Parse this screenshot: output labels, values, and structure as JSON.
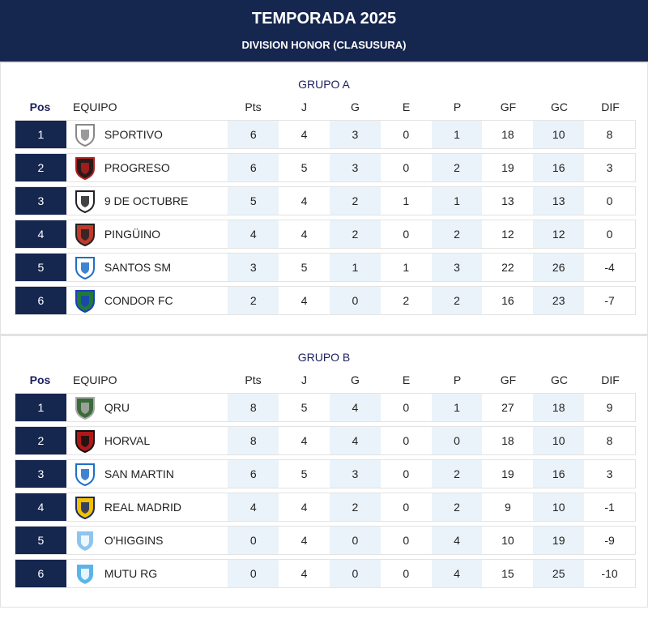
{
  "header": {
    "title": "TEMPORADA 2025",
    "subtitle": "DIVISION HONOR (CLASUSURA)"
  },
  "columns": [
    "Pos",
    "EQUIPO",
    "Pts",
    "J",
    "G",
    "E",
    "P",
    "GF",
    "GC",
    "DIF"
  ],
  "groups": [
    {
      "title": "GRUPO A",
      "rows": [
        {
          "pos": "1",
          "team": "SPORTIVO",
          "logo": "sportivo-crest",
          "stats": [
            "6",
            "4",
            "3",
            "0",
            "1",
            "18",
            "10",
            "8"
          ],
          "colors": [
            "#ffffff",
            "#888888"
          ]
        },
        {
          "pos": "2",
          "team": "PROGRESO",
          "logo": "progreso-crest",
          "stats": [
            "6",
            "5",
            "3",
            "0",
            "2",
            "19",
            "16",
            "3"
          ],
          "colors": [
            "#2a1a1a",
            "#b02020"
          ]
        },
        {
          "pos": "3",
          "team": "9 DE OCTUBRE",
          "logo": "9-de-octubre-crest",
          "stats": [
            "5",
            "4",
            "2",
            "1",
            "1",
            "13",
            "13",
            "0"
          ],
          "colors": [
            "#ffffff",
            "#222222"
          ]
        },
        {
          "pos": "4",
          "team": "PINGÜINO",
          "logo": "pinguino-crest",
          "stats": [
            "4",
            "4",
            "2",
            "0",
            "2",
            "12",
            "12",
            "0"
          ],
          "colors": [
            "#c0392b",
            "#222222"
          ]
        },
        {
          "pos": "5",
          "team": "SANTOS SM",
          "logo": "santos-sm-crest",
          "stats": [
            "3",
            "5",
            "1",
            "1",
            "3",
            "22",
            "26",
            "-4"
          ],
          "colors": [
            "#ffffff",
            "#1e6fc8"
          ]
        },
        {
          "pos": "6",
          "team": "CONDOR FC",
          "logo": "condor-fc-crest",
          "stats": [
            "2",
            "4",
            "0",
            "2",
            "2",
            "16",
            "23",
            "-7"
          ],
          "colors": [
            "#1f7a3a",
            "#1a3fbf"
          ]
        }
      ]
    },
    {
      "title": "GRUPO B",
      "rows": [
        {
          "pos": "1",
          "team": "QRU",
          "logo": "qru-crest",
          "stats": [
            "8",
            "5",
            "4",
            "0",
            "1",
            "27",
            "18",
            "9"
          ],
          "colors": [
            "#3b6b3b",
            "#aaaaaa"
          ]
        },
        {
          "pos": "2",
          "team": "HORVAL",
          "logo": "horval-crest",
          "stats": [
            "8",
            "4",
            "4",
            "0",
            "0",
            "18",
            "10",
            "8"
          ],
          "colors": [
            "#b01818",
            "#111111"
          ]
        },
        {
          "pos": "3",
          "team": "SAN MARTIN",
          "logo": "san-martin-crest",
          "stats": [
            "6",
            "5",
            "3",
            "0",
            "2",
            "19",
            "16",
            "3"
          ],
          "colors": [
            "#ffffff",
            "#1e6fc8"
          ]
        },
        {
          "pos": "4",
          "team": "REAL MADRID",
          "logo": "real-madrid-crest",
          "stats": [
            "4",
            "4",
            "2",
            "0",
            "2",
            "9",
            "10",
            "-1"
          ],
          "colors": [
            "#f2c200",
            "#1a2a6b"
          ]
        },
        {
          "pos": "5",
          "team": "O'HIGGINS",
          "logo": "ohiggins-crest",
          "stats": [
            "0",
            "4",
            "0",
            "0",
            "4",
            "10",
            "19",
            "-9"
          ],
          "colors": [
            "#8ec5ef",
            "#ffffff"
          ]
        },
        {
          "pos": "6",
          "team": "MUTU RG",
          "logo": "mutu-rg-crest",
          "stats": [
            "0",
            "4",
            "0",
            "0",
            "4",
            "15",
            "25",
            "-10"
          ],
          "colors": [
            "#5bb4e8",
            "#ffffff"
          ]
        }
      ]
    }
  ]
}
